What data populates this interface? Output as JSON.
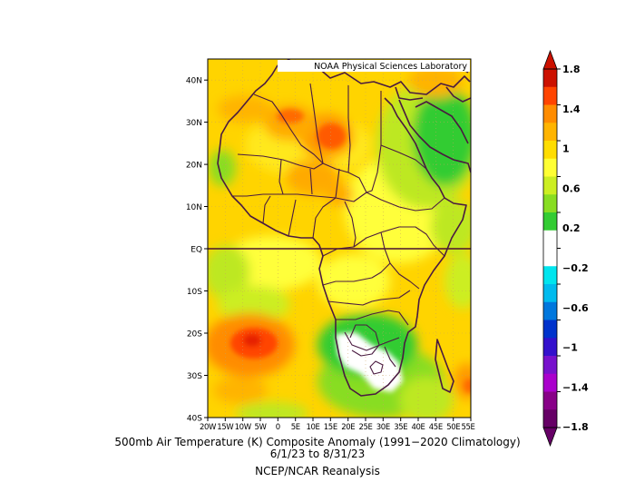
{
  "header": {
    "lab_title": "NOAA Physical Sciences Laboratory"
  },
  "map": {
    "region": "Africa",
    "lat_ticks": [
      "40N",
      "30N",
      "20N",
      "10N",
      "EQ",
      "10S",
      "20S",
      "30S",
      "40S"
    ],
    "lon_ticks": [
      "20W",
      "15W",
      "10W",
      "5W",
      "0",
      "5E",
      "10E",
      "15E",
      "20E",
      "25E",
      "30E",
      "35E",
      "40E",
      "45E",
      "50E",
      "55E"
    ],
    "lat_range": [
      -40,
      45
    ],
    "lon_range": [
      -20,
      55
    ]
  },
  "colorbar": {
    "labels": [
      "1.8",
      "1.4",
      "1",
      "0.6",
      "0.2",
      "−0.2",
      "−0.6",
      "−1",
      "−1.4",
      "−1.8"
    ],
    "colors_top_to_bottom": [
      "#cc1100",
      "#ff4400",
      "#ff8c00",
      "#ffb400",
      "#ffdd00",
      "#ffff33",
      "#ccee22",
      "#88dd22",
      "#33cc33",
      "#ffffff",
      "#ffffff",
      "#00e5ee",
      "#00bbee",
      "#0077dd",
      "#0033cc",
      "#3311cc",
      "#7711cc",
      "#aa00cc",
      "#880088",
      "#660066"
    ]
  },
  "caption": {
    "line1": "500mb Air Temperature (K) Composite Anomaly (1991−2020 Climatology)",
    "line2": "6/1/23  to 8/31/23",
    "line3": "NCEP/NCAR Reanalysis"
  }
}
